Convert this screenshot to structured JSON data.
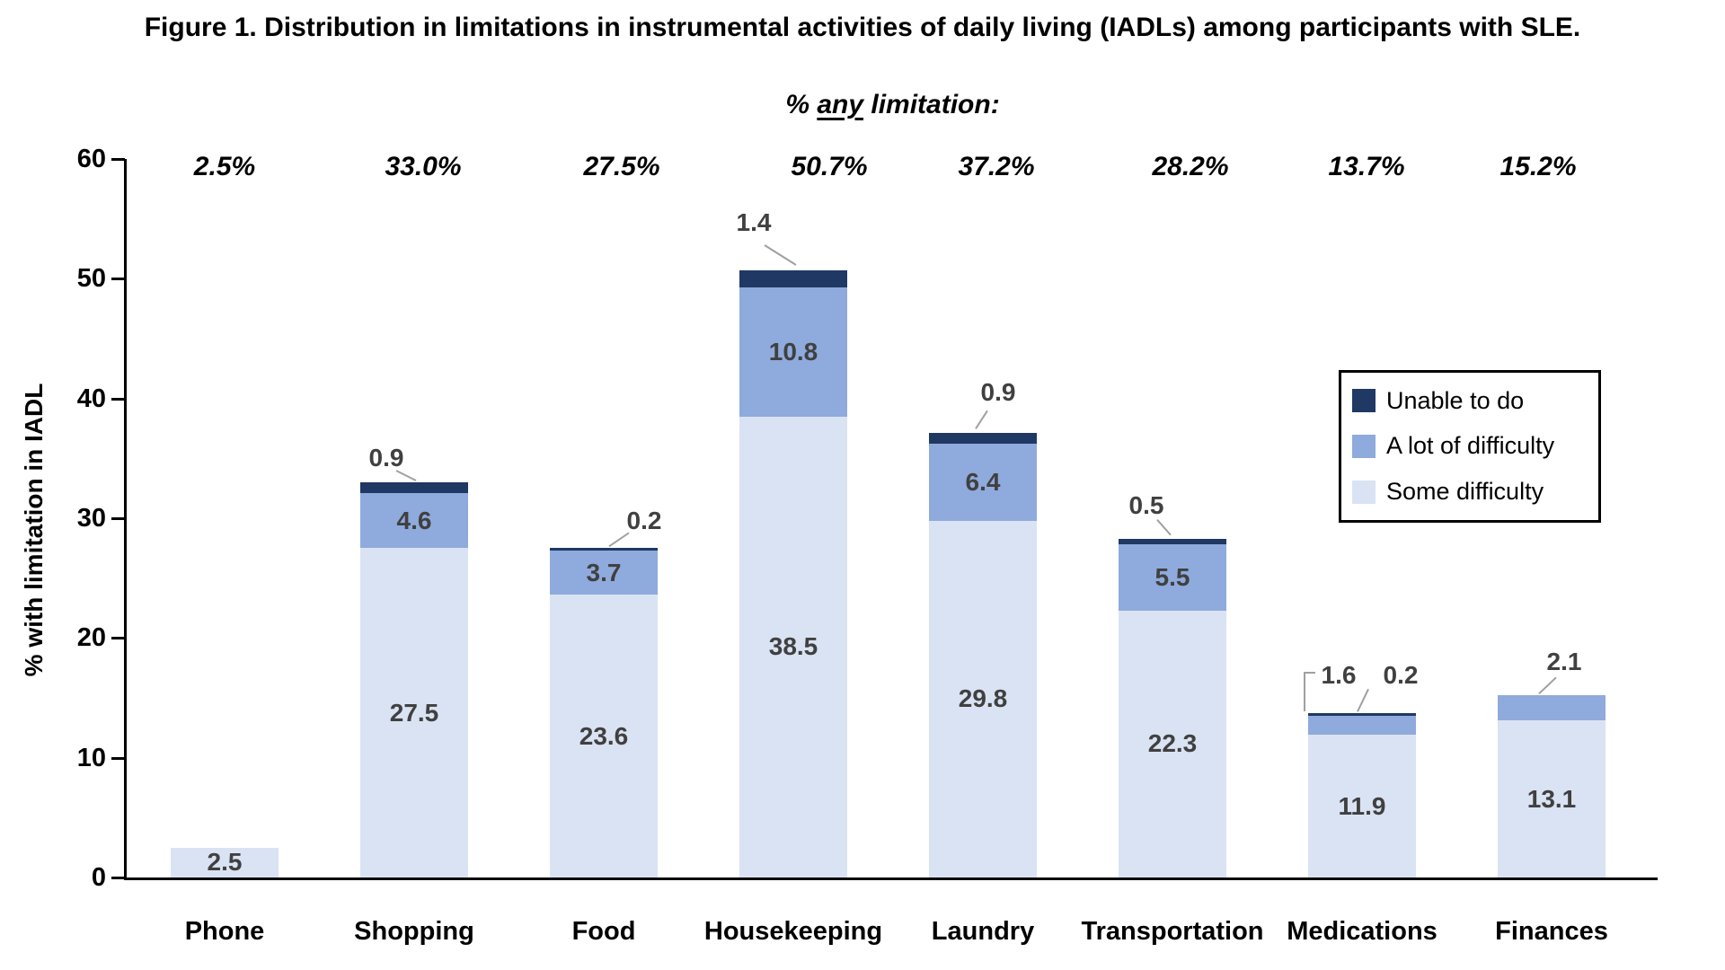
{
  "figure": {
    "title": "Figure 1. Distribution in limitations in instrumental activities of daily living (IADLs) among participants with SLE.",
    "subtitle_prefix": "% ",
    "subtitle_underlined": "any",
    "subtitle_suffix": " limitation:"
  },
  "chart_data": {
    "type": "bar",
    "stacked": true,
    "title": "Figure 1. Distribution in limitations in instrumental activities of daily living (IADLs) among participants with SLE.",
    "subtitle": "% any limitation:",
    "categories": [
      "Phone",
      "Shopping",
      "Food",
      "Housekeeping",
      "Laundry",
      "Transportation",
      "Medications",
      "Finances"
    ],
    "any_limitation_pct": [
      "2.5%",
      "33.0%",
      "27.5%",
      "50.7%",
      "37.2%",
      "28.2%",
      "13.7%",
      "15.2%"
    ],
    "series": [
      {
        "name": "Some difficulty",
        "color": "#DAE3F3",
        "values": [
          2.5,
          27.5,
          23.6,
          38.5,
          29.8,
          22.3,
          11.9,
          13.1
        ]
      },
      {
        "name": "A lot of difficulty",
        "color": "#8FAADC",
        "values": [
          0,
          4.6,
          3.7,
          10.8,
          6.4,
          5.5,
          1.6,
          2.1
        ]
      },
      {
        "name": "Unable to do",
        "color": "#1F3864",
        "values": [
          0,
          0.9,
          0.2,
          1.4,
          0.9,
          0.5,
          0.2,
          0
        ]
      }
    ],
    "xlabel": "",
    "ylabel": "% with limitation in IADL",
    "ylim": [
      0,
      60
    ],
    "yticks": [
      0,
      10,
      20,
      30,
      40,
      50,
      60
    ],
    "grid": false,
    "legend": {
      "position": "middle-right",
      "entries": [
        "Unable to do",
        "A lot of difficulty",
        "Some difficulty"
      ]
    },
    "value_label_color": "#404040"
  }
}
